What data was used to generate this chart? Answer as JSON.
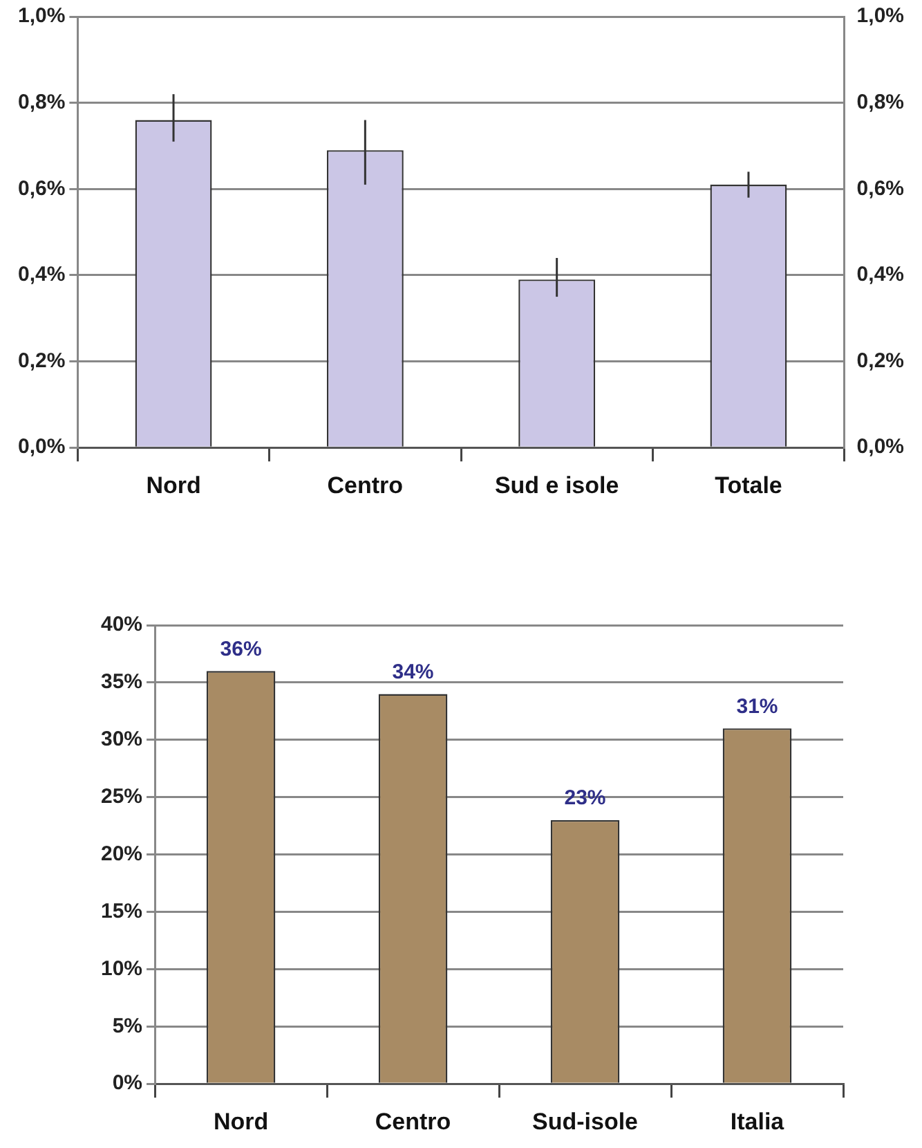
{
  "chart_data": [
    {
      "type": "bar",
      "categories": [
        "Nord",
        "Centro",
        "Sud e isole",
        "Totale"
      ],
      "values": [
        0.76,
        0.69,
        0.39,
        0.61
      ],
      "color": "#cbc6e6",
      "errors": [
        [
          0.71,
          0.82
        ],
        [
          0.61,
          0.76
        ],
        [
          0.35,
          0.44
        ],
        [
          0.58,
          0.64
        ]
      ],
      "ylim": [
        0,
        1
      ],
      "yticks": [
        {
          "value": 0,
          "label": "0,0%"
        },
        {
          "value": 0.2,
          "label": "0,2%"
        },
        {
          "value": 0.4,
          "label": "0,4%"
        },
        {
          "value": 0.6,
          "label": "0,6%"
        },
        {
          "value": 0.8,
          "label": "0,8%"
        },
        {
          "value": 1,
          "label": "1,0%"
        }
      ],
      "y2lim": [
        0,
        1
      ],
      "y2ticks": [
        {
          "value": 0,
          "label": "0,0%"
        },
        {
          "value": 0.2,
          "label": "0,2%"
        },
        {
          "value": 0.4,
          "label": "0,4%"
        },
        {
          "value": 0.6,
          "label": "0,6%"
        },
        {
          "value": 0.8,
          "label": "0,8%"
        },
        {
          "value": 1,
          "label": "1,0%"
        }
      ],
      "grid": "y",
      "legend": false
    },
    {
      "type": "bar",
      "categories": [
        "Nord",
        "Centro",
        "Sud-isole",
        "Italia"
      ],
      "values": [
        36,
        34,
        23,
        31
      ],
      "color": "#a88b64",
      "value_labels": [
        "36%",
        "34%",
        "23%",
        "31%"
      ],
      "ylim": [
        0,
        40
      ],
      "yticks": [
        {
          "value": 0,
          "label": "0%"
        },
        {
          "value": 5,
          "label": "5%"
        },
        {
          "value": 10,
          "label": "10%"
        },
        {
          "value": 15,
          "label": "15%"
        },
        {
          "value": 20,
          "label": "20%"
        },
        {
          "value": 25,
          "label": "25%"
        },
        {
          "value": 30,
          "label": "30%"
        },
        {
          "value": 35,
          "label": "35%"
        },
        {
          "value": 40,
          "label": "40%"
        }
      ],
      "grid": "y",
      "legend": false
    }
  ]
}
